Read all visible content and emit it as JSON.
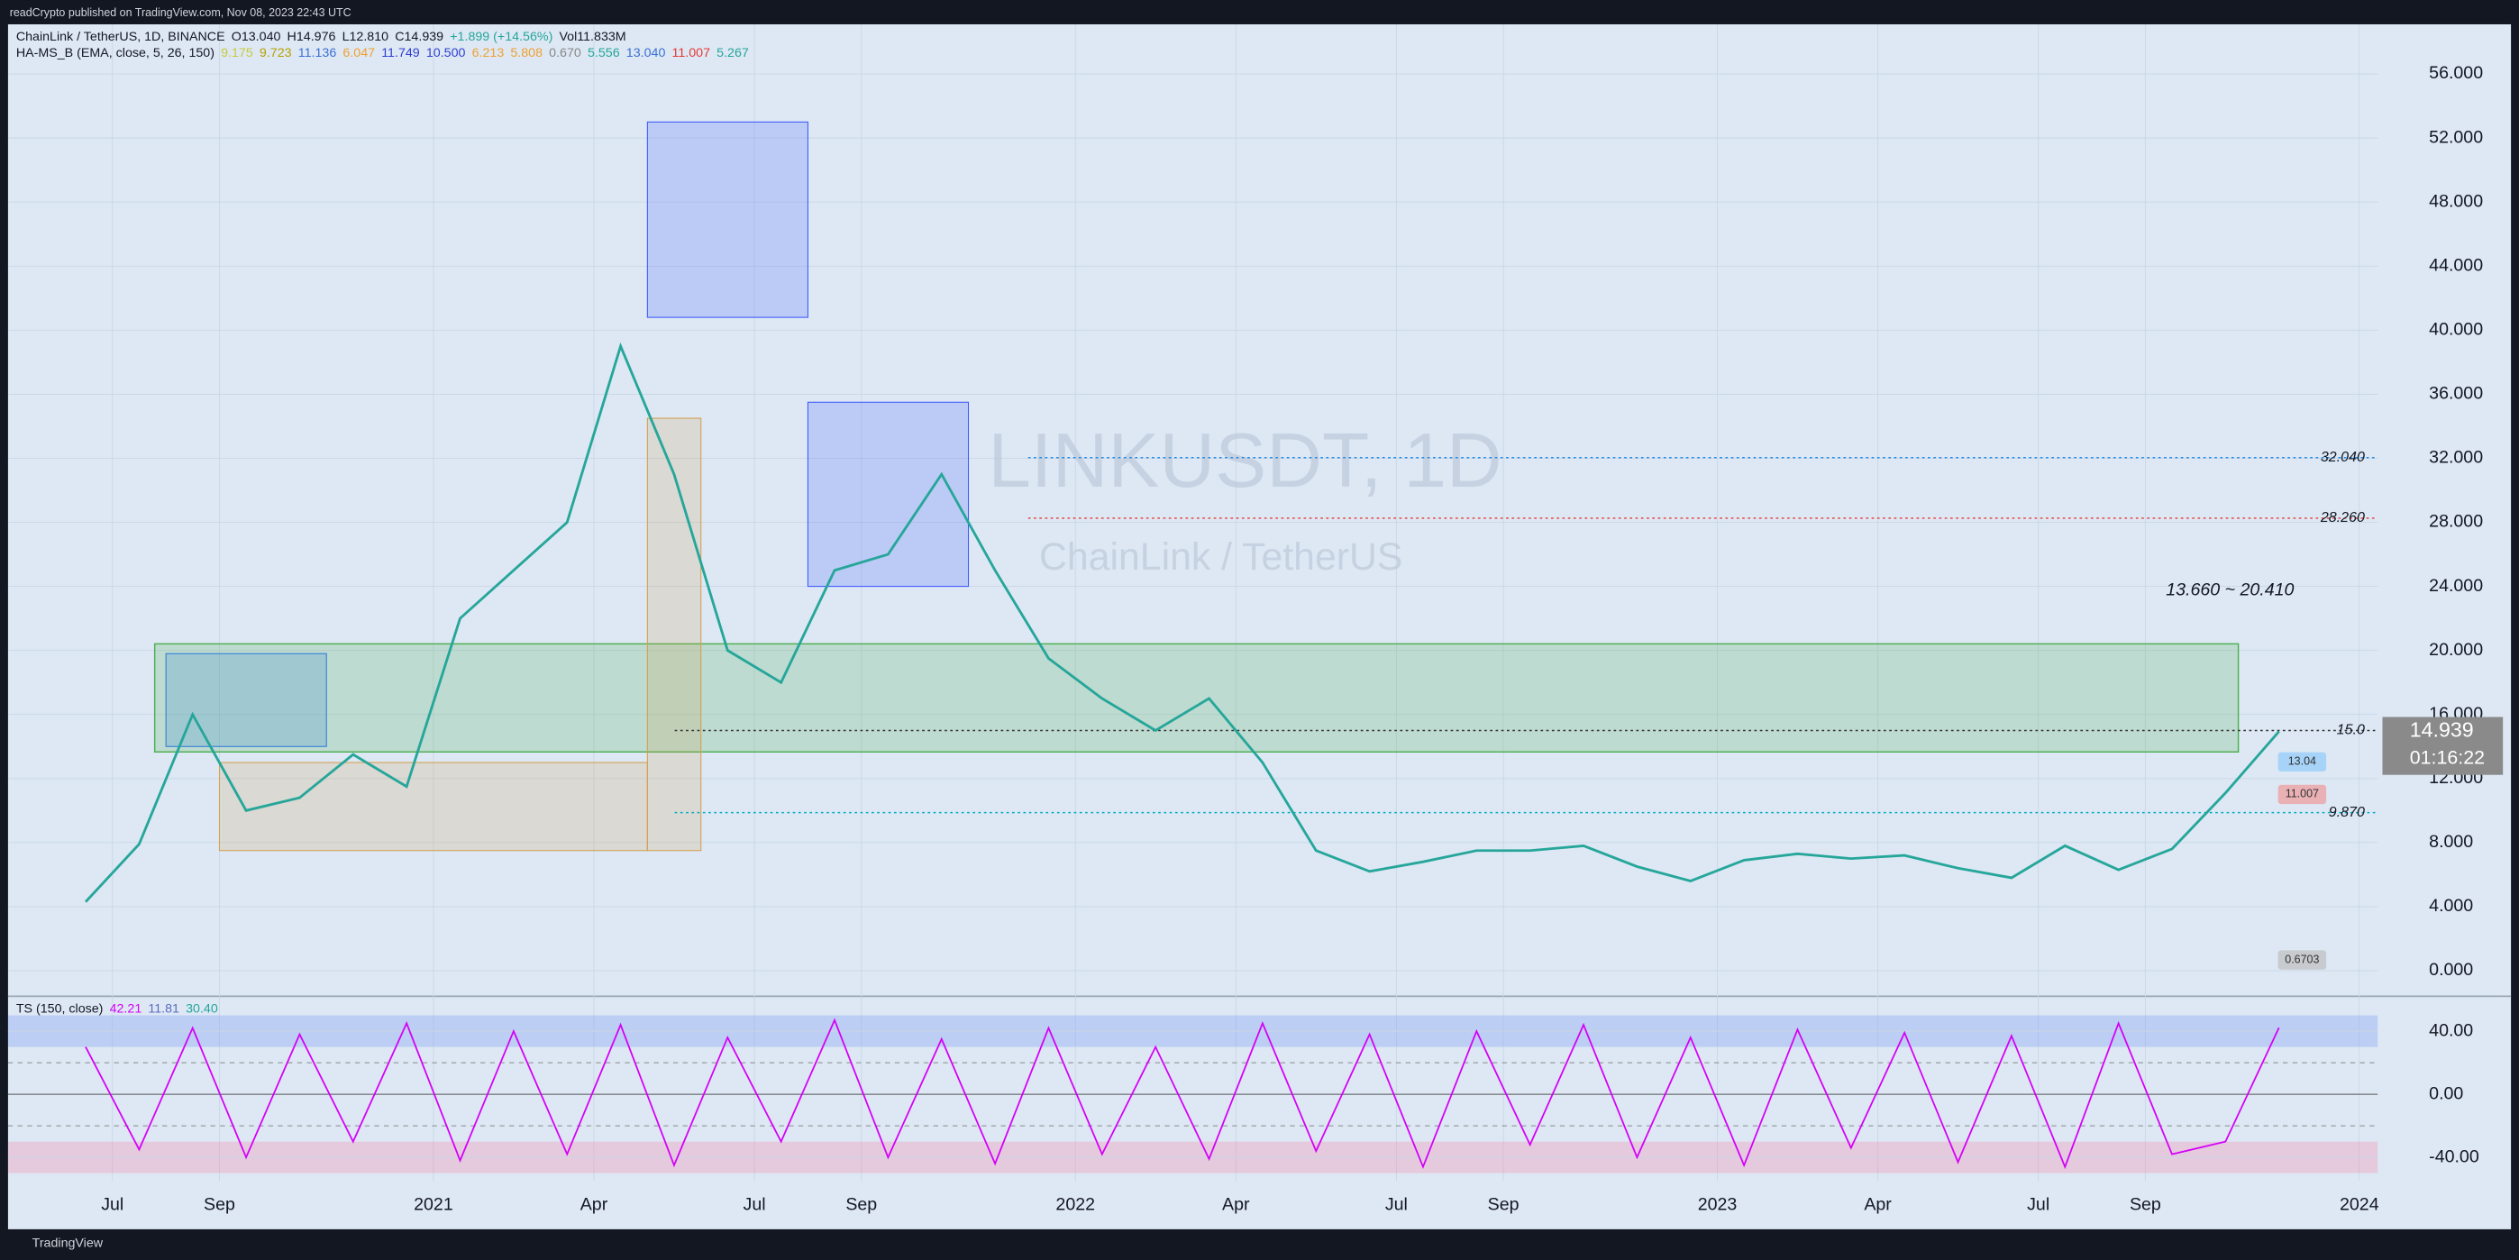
{
  "publisher": "readCrypto published on TradingView.com, Nov 08, 2023 22:43 UTC",
  "footer": "TradingView",
  "chart_data": [
    {
      "type": "line",
      "title": "ChainLink / TetherUS, 1D, BINANCE",
      "watermark": "LINKUSDT, 1D",
      "watermark_sub": "ChainLink / TetherUS",
      "ohlc": [
        "O13.040",
        "H14.976",
        "L12.810",
        "C14.939",
        "+1.899 (+14.56%)",
        "Vol11.833M"
      ],
      "indicator": "HA-MS_B (EMA, close, 5, 26, 150)",
      "indicator_values": [
        {
          "label": "9.175",
          "color": "#c9c93a"
        },
        {
          "label": "9.723",
          "color": "#b8a000"
        },
        {
          "label": "11.136",
          "color": "#3b6fd4"
        },
        {
          "label": "6.047",
          "color": "#f0a030"
        },
        {
          "label": "11.749",
          "color": "#2e3fd0"
        },
        {
          "label": "10.500",
          "color": "#2e3fd0"
        },
        {
          "label": "6.213",
          "color": "#f0a030"
        },
        {
          "label": "5.808",
          "color": "#f0a030"
        },
        {
          "label": "0.670",
          "color": "#888888"
        },
        {
          "label": "5.556",
          "color": "#26a69a"
        },
        {
          "label": "13.040",
          "color": "#3b6fd4"
        },
        {
          "label": "11.007",
          "color": "#e53935"
        },
        {
          "label": "5.267",
          "color": "#26a69a"
        }
      ],
      "x": [
        "2020-06",
        "2020-07",
        "2020-08",
        "2020-09",
        "2020-10",
        "2020-11",
        "2020-12",
        "2021-01",
        "2021-02",
        "2021-03",
        "2021-04",
        "2021-05",
        "2021-06",
        "2021-07",
        "2021-08",
        "2021-09",
        "2021-10",
        "2021-11",
        "2021-12",
        "2022-01",
        "2022-02",
        "2022-03",
        "2022-04",
        "2022-05",
        "2022-06",
        "2022-07",
        "2022-08",
        "2022-09",
        "2022-10",
        "2022-11",
        "2022-12",
        "2023-01",
        "2023-02",
        "2023-03",
        "2023-04",
        "2023-05",
        "2023-06",
        "2023-07",
        "2023-08",
        "2023-09",
        "2023-10",
        "2023-11"
      ],
      "series": [
        {
          "name": "LINKUSDT",
          "color": "#26a69a",
          "values": [
            4.3,
            7.9,
            16,
            10,
            10.8,
            13.5,
            11.5,
            22,
            25,
            28,
            39,
            31,
            20,
            18,
            25,
            26,
            31,
            25,
            19.5,
            17,
            15,
            17,
            13,
            7.5,
            6.2,
            6.8,
            7.5,
            7.5,
            7.8,
            6.5,
            5.6,
            6.9,
            7.3,
            7.0,
            7.2,
            6.4,
            5.8,
            7.8,
            6.3,
            7.6,
            11.1,
            14.939
          ]
        }
      ],
      "ylim": [
        -1.6,
        59.1
      ],
      "yticks": [
        {
          "value": 0,
          "label": "0.000"
        },
        {
          "value": 4,
          "label": "4.000"
        },
        {
          "value": 8,
          "label": "8.000"
        },
        {
          "value": 12,
          "label": "12.000"
        },
        {
          "value": 16,
          "label": "16.000"
        },
        {
          "value": 20,
          "label": "20.000"
        },
        {
          "value": 24,
          "label": "24.000"
        },
        {
          "value": 28,
          "label": "28.000"
        },
        {
          "value": 32,
          "label": "32.000"
        },
        {
          "value": 36,
          "label": "36.000"
        },
        {
          "value": 40,
          "label": "40.000"
        },
        {
          "value": 44,
          "label": "44.000"
        },
        {
          "value": 48,
          "label": "48.000"
        },
        {
          "value": 52,
          "label": "52.000"
        },
        {
          "value": 56,
          "label": "56.000"
        }
      ],
      "xticks": [
        {
          "value": "2020-07",
          "label": "Jul"
        },
        {
          "value": "2020-09",
          "label": "Sep"
        },
        {
          "value": "2021-01",
          "label": "2021"
        },
        {
          "value": "2021-04",
          "label": "Apr"
        },
        {
          "value": "2021-07",
          "label": "Jul"
        },
        {
          "value": "2021-09",
          "label": "Sep"
        },
        {
          "value": "2022-01",
          "label": "2022"
        },
        {
          "value": "2022-04",
          "label": "Apr"
        },
        {
          "value": "2022-07",
          "label": "Jul"
        },
        {
          "value": "2022-09",
          "label": "Sep"
        },
        {
          "value": "2023-01",
          "label": "2023"
        },
        {
          "value": "2023-04",
          "label": "Apr"
        },
        {
          "value": "2023-07",
          "label": "Jul"
        },
        {
          "value": "2023-09",
          "label": "Sep"
        },
        {
          "value": "2024-01",
          "label": "2024"
        }
      ],
      "levels": [
        {
          "value": 32.04,
          "label": "32.040",
          "color": "#1e88e5"
        },
        {
          "value": 28.26,
          "label": "28.260",
          "color": "#e53935"
        },
        {
          "value": 15,
          "label": "15.0",
          "color": "#333333"
        },
        {
          "value": 9.87,
          "label": "9.870",
          "color": "#00acc1"
        }
      ],
      "zone": {
        "low": 13.66,
        "high": 20.41,
        "label": "13.660 ~ 20.410",
        "color": "#4caf50",
        "x": [
          "2020-08",
          "2023-12"
        ]
      },
      "boxes": [
        {
          "low": 40.8,
          "high": 53,
          "color": "#3d5afe",
          "x": [
            "2021-05",
            "2021-08"
          ]
        },
        {
          "low": 24,
          "high": 35.5,
          "color": "#3d5afe",
          "x": [
            "2021-08",
            "2021-11"
          ]
        },
        {
          "low": 7.5,
          "high": 34.5,
          "color": "#d4a050",
          "x": [
            "2021-05",
            "2021-06"
          ]
        },
        {
          "low": 14,
          "high": 19.8,
          "color": "#2e7dd6",
          "x": [
            "2020-08",
            "2020-11"
          ]
        },
        {
          "low": 7.5,
          "high": 13,
          "color": "#d4a050",
          "x": [
            "2020-09",
            "2021-05"
          ]
        }
      ],
      "last_price": {
        "value": 14.939,
        "label": "14.939",
        "countdown": "01:16:22"
      },
      "price_tags": [
        {
          "value": 13.04,
          "label": "13.04",
          "color": "#90caf9"
        },
        {
          "value": 11.007,
          "label": "11.007",
          "color": "#ef9a9a"
        },
        {
          "value": 0.6703,
          "label": "0.6703",
          "color": "#bdbdbd"
        }
      ]
    },
    {
      "type": "line",
      "title": "TS (150, close)",
      "legend_values": [
        {
          "label": "42.21",
          "color": "#d500f9"
        },
        {
          "label": "11.81",
          "color": "#5c6bc0"
        },
        {
          "label": "30.40",
          "color": "#26a69a"
        }
      ],
      "x": [
        "2020-06",
        "2020-07",
        "2020-08",
        "2020-09",
        "2020-10",
        "2020-11",
        "2020-12",
        "2021-01",
        "2021-02",
        "2021-03",
        "2021-04",
        "2021-05",
        "2021-06",
        "2021-07",
        "2021-08",
        "2021-09",
        "2021-10",
        "2021-11",
        "2021-12",
        "2022-01",
        "2022-02",
        "2022-03",
        "2022-04",
        "2022-05",
        "2022-06",
        "2022-07",
        "2022-08",
        "2022-09",
        "2022-10",
        "2022-11",
        "2022-12",
        "2023-01",
        "2023-02",
        "2023-03",
        "2023-04",
        "2023-05",
        "2023-06",
        "2023-07",
        "2023-08",
        "2023-09",
        "2023-10",
        "2023-11"
      ],
      "series": [
        {
          "name": "TS",
          "color": "#d500f9",
          "values": [
            30,
            -35,
            42,
            -40,
            38,
            -30,
            45,
            -42,
            40,
            -38,
            44,
            -45,
            36,
            -30,
            47,
            -40,
            35,
            -44,
            42,
            -38,
            30,
            -41,
            45,
            -36,
            38,
            -46,
            40,
            -32,
            44,
            -40,
            36,
            -45,
            41,
            -34,
            39,
            -43,
            37,
            -46,
            45,
            -38,
            -30,
            42.21
          ]
        }
      ],
      "ylim": [
        -55,
        57
      ],
      "yticks": [
        {
          "value": -40,
          "label": "-40.00"
        },
        {
          "value": 0,
          "label": "0.00"
        },
        {
          "value": 40,
          "label": "40.00"
        }
      ],
      "bands": [
        {
          "low": 30,
          "high": 50,
          "color": "#7e9ef0"
        },
        {
          "low": -50,
          "high": -30,
          "color": "#f48fb1"
        }
      ],
      "guides": [
        20,
        -20
      ]
    }
  ]
}
